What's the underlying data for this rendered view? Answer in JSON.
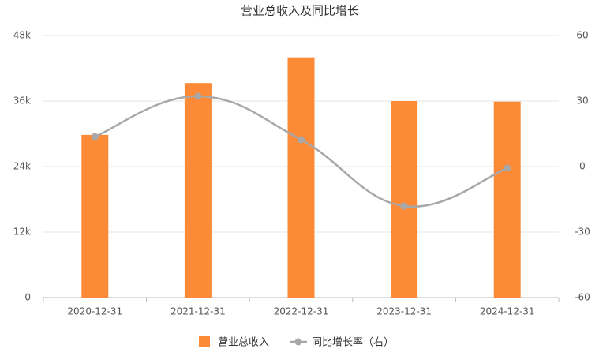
{
  "chart_data": {
    "type": "bar_line",
    "title": "营业总收入及同比增长",
    "categories": [
      "2020-12-31",
      "2021-12-31",
      "2022-12-31",
      "2023-12-31",
      "2024-12-31"
    ],
    "series": [
      {
        "name": "营业总收入",
        "type": "bar",
        "color": "#fd8a36",
        "values": [
          29800,
          39300,
          44000,
          36000,
          35900
        ]
      },
      {
        "name": "同比增长率（右）",
        "type": "line",
        "axis": "y2",
        "color": "#a8a8a8",
        "values": [
          13.7,
          32.2,
          12.3,
          -18.1,
          -0.7
        ]
      }
    ],
    "ylim": [
      0,
      48000
    ],
    "yticks": [
      0,
      {
        "value": 12000,
        "label": "12k"
      },
      {
        "value": 24000,
        "label": "24k"
      },
      {
        "value": 36000,
        "label": "36k"
      },
      {
        "value": 48000,
        "label": "48k"
      }
    ],
    "y2lim": [
      -60,
      60
    ],
    "y2ticks": [
      -60,
      -30,
      0,
      30,
      60
    ],
    "grid": true
  }
}
